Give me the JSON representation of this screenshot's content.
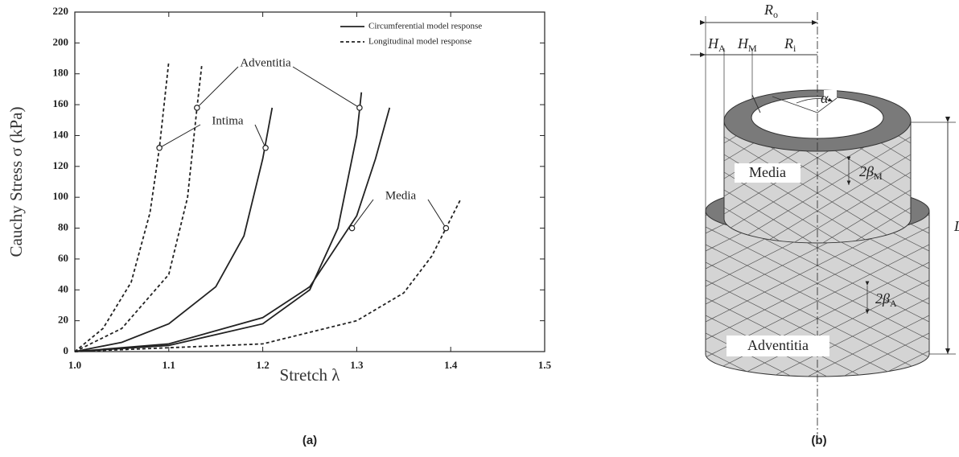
{
  "chart_data": {
    "type": "line",
    "xlabel": "Stretch  λ",
    "ylabel": "Cauchy Stress  σ  (kPa)",
    "xlim": [
      1.0,
      1.5
    ],
    "xticks": [
      {
        "value": 1.0,
        "label": "1.0"
      },
      1.1,
      1.2,
      1.3,
      1.4,
      1.5
    ],
    "ylim": [
      0,
      220
    ],
    "yticks": [
      0,
      20,
      40,
      60,
      80,
      100,
      120,
      140,
      160,
      180,
      200,
      220
    ],
    "legend": "upper right",
    "grid": false,
    "series": [
      {
        "name": "Circumferential model response",
        "color": "#222222",
        "dashed": false,
        "lines": [
          {
            "x": [
              1.0,
              1.05,
              1.1,
              1.15,
              1.18,
              1.2,
              1.21
            ],
            "values": [
              0,
              6,
              18,
              42,
              75,
              125,
              158
            ]
          },
          {
            "x": [
              1.0,
              1.1,
              1.2,
              1.25,
              1.28,
              1.3,
              1.305
            ],
            "values": [
              0,
              4,
              18,
              40,
              80,
              140,
              168
            ]
          },
          {
            "x": [
              1.0,
              1.1,
              1.2,
              1.25,
              1.3,
              1.32,
              1.335
            ],
            "values": [
              0,
              5,
              22,
              42,
              88,
              125,
              158
            ]
          }
        ]
      },
      {
        "name": "Longitudinal model response",
        "color": "#222222",
        "dashed": true,
        "lines": [
          {
            "x": [
              1.0,
              1.03,
              1.06,
              1.08,
              1.09,
              1.095,
              1.1
            ],
            "values": [
              0,
              15,
              45,
              90,
              132,
              160,
              188
            ]
          },
          {
            "x": [
              1.0,
              1.05,
              1.1,
              1.12,
              1.13,
              1.135
            ],
            "values": [
              0,
              15,
              50,
              100,
              158,
              185
            ]
          },
          {
            "x": [
              1.0,
              1.2,
              1.3,
              1.35,
              1.38,
              1.395,
              1.41
            ],
            "values": [
              0,
              5,
              20,
              38,
              62,
              80,
              98
            ]
          }
        ]
      }
    ],
    "annotations": [
      {
        "text": "Adventitia",
        "points": [
          {
            "x": 1.13,
            "y": 158
          },
          {
            "x": 1.303,
            "y": 158
          }
        ]
      },
      {
        "text": "Intima",
        "points": [
          {
            "x": 1.09,
            "y": 132
          },
          {
            "x": 1.203,
            "y": 132
          }
        ]
      },
      {
        "text": "Media",
        "points": [
          {
            "x": 1.295,
            "y": 80
          },
          {
            "x": 1.395,
            "y": 80
          }
        ]
      }
    ],
    "caption": "(a)"
  },
  "diagram": {
    "caption": "(b)",
    "labels": [
      {
        "text": "R",
        "sub": "o"
      },
      {
        "text": "H",
        "sub": "A"
      },
      {
        "text": "H",
        "sub": "M"
      },
      {
        "text": "R",
        "sub": "i"
      },
      {
        "text": "α"
      },
      {
        "text": "2β",
        "sub": "M"
      },
      {
        "text": "L"
      },
      {
        "text": "2β",
        "sub": "A"
      }
    ],
    "layers": [
      "Media",
      "Adventitia"
    ]
  }
}
